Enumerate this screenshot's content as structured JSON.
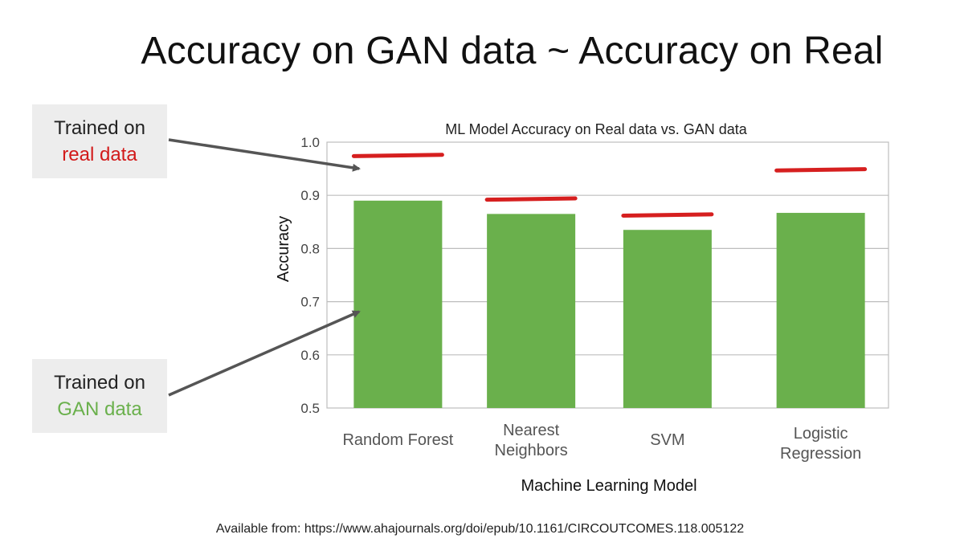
{
  "slide": {
    "title": "Accuracy on GAN data ~ Accuracy on Real",
    "source": "Available from: https://www.ahajournals.org/doi/epub/10.1161/CIRCOUTCOMES.118.005122"
  },
  "callouts": {
    "real": {
      "line1": "Trained on",
      "line2": "real data"
    },
    "gan": {
      "line1": "Trained on",
      "line2": "GAN data"
    }
  },
  "colors": {
    "gan_bar": "#6ab04c",
    "real_marker": "#d61f1f",
    "arrow": "#555555",
    "grid": "#bdbdbd"
  },
  "chart_data": {
    "type": "bar",
    "title": "ML Model Accuracy on Real data vs. GAN data",
    "xlabel": "Machine Learning Model",
    "ylabel": "Accuracy",
    "ylim": [
      0.5,
      1.0
    ],
    "yticks": [
      "0.5",
      "0.6",
      "0.7",
      "0.8",
      "0.9",
      "1.0"
    ],
    "grid": true,
    "categories": [
      [
        "Random Forest"
      ],
      [
        "Nearest",
        "Neighbors"
      ],
      [
        "SVM"
      ],
      [
        "Logistic",
        "Regression"
      ]
    ],
    "series": [
      {
        "values": [
          0.89,
          0.865,
          0.835,
          0.867
        ]
      },
      {
        "values": [
          0.975,
          0.893,
          0.863,
          0.948
        ]
      }
    ]
  }
}
